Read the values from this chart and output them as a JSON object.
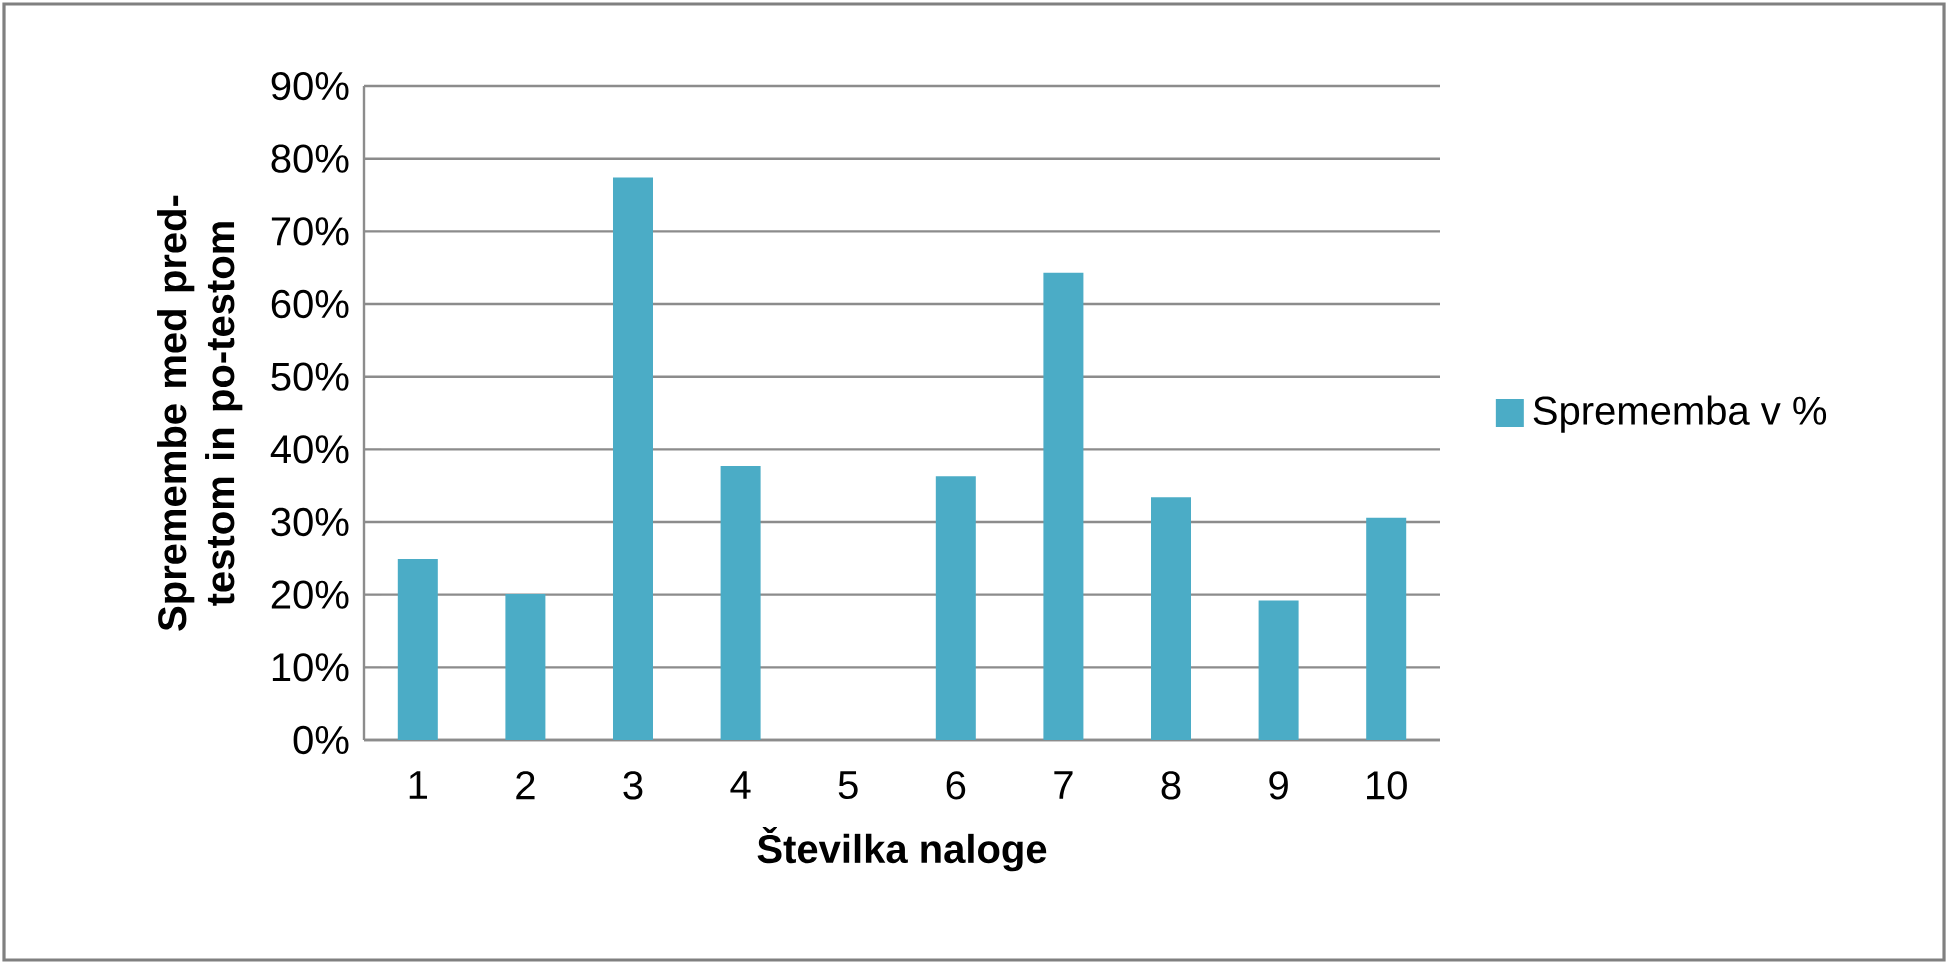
{
  "chart_data": {
    "type": "bar",
    "xlabel": "Številka naloge",
    "ylabel": "Spremembe med pred-testom in po-testom",
    "categories": [
      "1",
      "2",
      "3",
      "4",
      "5",
      "6",
      "7",
      "8",
      "9",
      "10"
    ],
    "series": [
      {
        "name": "Sprememba v %",
        "color": "#4bacc6",
        "values": [
          24.9,
          20.1,
          77.4,
          37.7,
          0,
          36.3,
          64.3,
          33.4,
          19.2,
          30.6
        ]
      }
    ],
    "ylim": [
      0,
      90
    ],
    "yticks": [
      {
        "value": 0,
        "label": "0%"
      },
      {
        "value": 10,
        "label": "10%"
      },
      {
        "value": 20,
        "label": "20%"
      },
      {
        "value": 30,
        "label": "30%"
      },
      {
        "value": 40,
        "label": "40%"
      },
      {
        "value": 50,
        "label": "50%"
      },
      {
        "value": 60,
        "label": "60%"
      },
      {
        "value": 70,
        "label": "70%"
      },
      {
        "value": 80,
        "label": "80%"
      },
      {
        "value": 90,
        "label": "90%"
      }
    ],
    "grid": "y",
    "legend": "right"
  }
}
